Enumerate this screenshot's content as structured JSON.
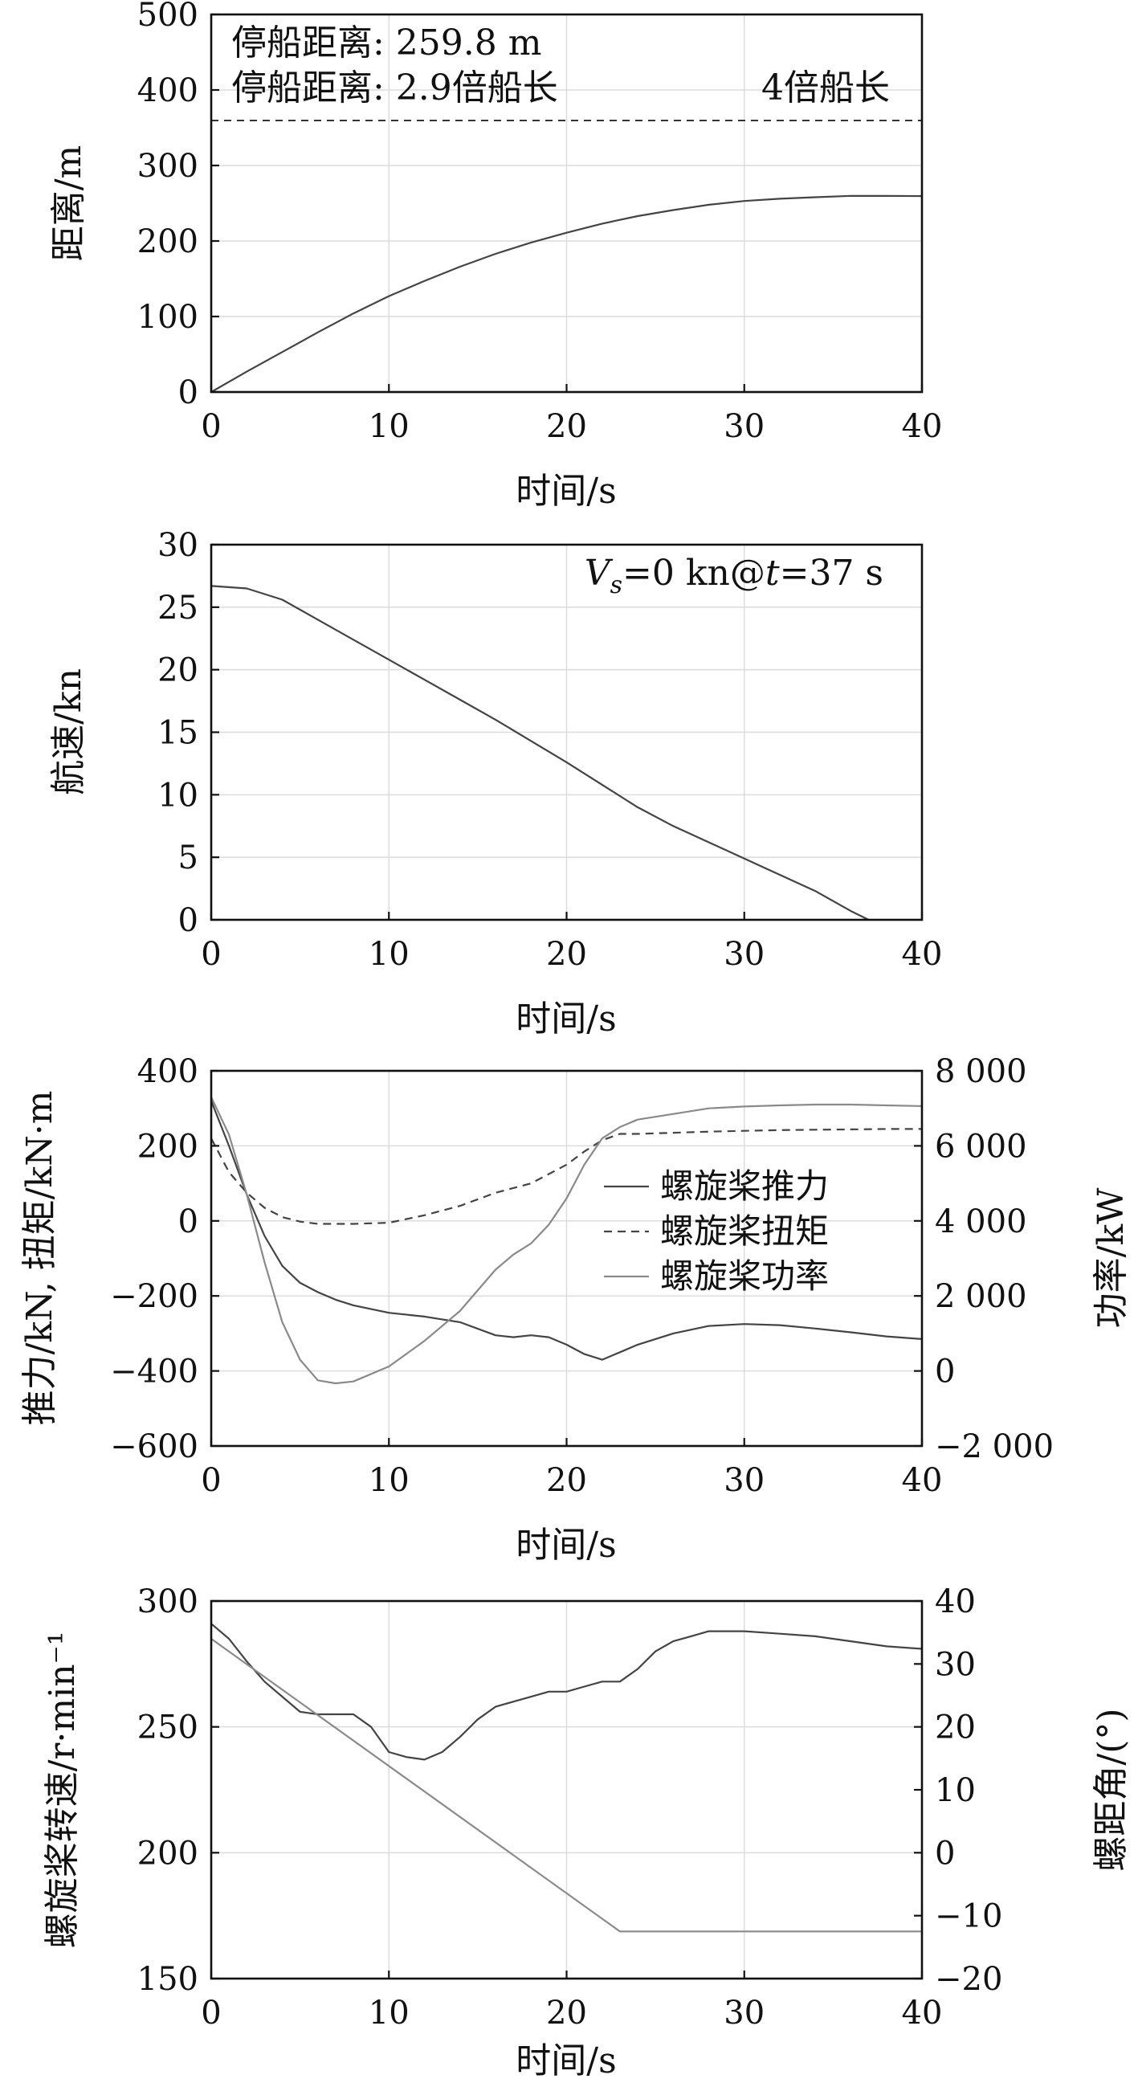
{
  "chart_data": [
    {
      "type": "line",
      "xlabel": "时间/s",
      "ylabel": "距离/m",
      "xlim": [
        0,
        40
      ],
      "ylim": [
        0,
        500
      ],
      "xticks": [
        "0",
        "10",
        "20",
        "30",
        "40"
      ],
      "yticks": [
        "0",
        "100",
        "200",
        "300",
        "400",
        "500"
      ],
      "grid": true,
      "annotations": [
        "停船距离: 259.8 m",
        "停船距离: 2.9倍船长",
        "4倍船长"
      ],
      "reference_line": {
        "y": 360,
        "label": "4倍船长"
      },
      "series": [
        {
          "x": [
            0,
            2,
            4,
            6,
            8,
            10,
            12,
            14,
            16,
            18,
            20,
            22,
            24,
            26,
            28,
            30,
            32,
            34,
            36,
            38,
            40
          ],
          "values": [
            0,
            27,
            53,
            79,
            104,
            127,
            147,
            166,
            183,
            198,
            211,
            223,
            233,
            241,
            248,
            253,
            256,
            258,
            259.8,
            259.7,
            259.5
          ]
        }
      ]
    },
    {
      "type": "line",
      "xlabel": "时间/s",
      "ylabel": "航速/kn",
      "xlim": [
        0,
        40
      ],
      "ylim": [
        0,
        30
      ],
      "xticks": [
        "0",
        "10",
        "20",
        "30",
        "40"
      ],
      "yticks": [
        "0",
        "5",
        "10",
        "15",
        "20",
        "25",
        "30"
      ],
      "grid": true,
      "annotation_parts": [
        "V",
        "s",
        "=0 kn@",
        "t",
        "=37 s"
      ],
      "series": [
        {
          "x": [
            0,
            2,
            4,
            6,
            8,
            10,
            12,
            14,
            16,
            18,
            20,
            22,
            24,
            26,
            28,
            30,
            32,
            34,
            36,
            37
          ],
          "values": [
            26.7,
            26.5,
            25.6,
            24.0,
            22.4,
            20.8,
            19.2,
            17.6,
            16.0,
            14.3,
            12.6,
            10.8,
            9.0,
            7.5,
            6.2,
            4.9,
            3.6,
            2.3,
            0.7,
            0
          ]
        }
      ]
    },
    {
      "type": "line",
      "xlabel": "时间/s",
      "ylabel": "推力/kN, 扭矩/kN·m",
      "ylabel_right": "功率/kW",
      "xlim": [
        0,
        40
      ],
      "ylim": [
        -600,
        400
      ],
      "ylim_right": [
        -2000,
        8000
      ],
      "xticks": [
        "0",
        "10",
        "20",
        "30",
        "40"
      ],
      "yticks": [
        "−600",
        "−400",
        "−200",
        "0",
        "200",
        "400"
      ],
      "yticks_right": [
        "−2 000",
        "0",
        "2 000",
        "4 000",
        "6 000",
        "8 000"
      ],
      "grid": true,
      "legend_position": "center-right",
      "series": [
        {
          "name": "螺旋桨推力",
          "axis": "left",
          "style": "solid",
          "x": [
            0,
            1,
            2,
            3,
            4,
            5,
            6,
            7,
            8,
            10,
            12,
            14,
            16,
            17,
            18,
            19,
            20,
            21,
            22,
            23,
            24,
            26,
            28,
            30,
            32,
            34,
            36,
            38,
            40
          ],
          "values": [
            320,
            200,
            70,
            -40,
            -120,
            -165,
            -190,
            -210,
            -225,
            -245,
            -255,
            -270,
            -305,
            -310,
            -305,
            -310,
            -330,
            -355,
            -370,
            -350,
            -330,
            -300,
            -280,
            -275,
            -278,
            -287,
            -297,
            -308,
            -315
          ]
        },
        {
          "name": "螺旋桨扭矩",
          "axis": "left",
          "style": "dashed",
          "x": [
            0,
            1,
            2,
            3,
            4,
            5,
            6,
            7,
            8,
            10,
            12,
            14,
            16,
            18,
            20,
            21,
            22,
            23,
            24,
            26,
            28,
            30,
            32,
            34,
            36,
            38,
            40
          ],
          "values": [
            220,
            130,
            75,
            35,
            10,
            -2,
            -8,
            -8,
            -8,
            -5,
            15,
            40,
            75,
            100,
            150,
            185,
            215,
            232,
            232,
            235,
            238,
            240,
            242,
            243,
            244,
            245,
            245
          ]
        },
        {
          "name": "螺旋桨功率",
          "axis": "right",
          "style": "solid",
          "x": [
            0,
            1,
            2,
            3,
            4,
            5,
            6,
            7,
            8,
            10,
            12,
            14,
            16,
            17,
            18,
            19,
            20,
            21,
            22,
            23,
            24,
            26,
            28,
            30,
            32,
            34,
            36,
            38,
            40
          ],
          "values": [
            7300,
            6300,
            4700,
            2900,
            1300,
            300,
            -250,
            -330,
            -280,
            120,
            800,
            1600,
            2700,
            3100,
            3400,
            3900,
            4600,
            5500,
            6200,
            6500,
            6700,
            6850,
            7000,
            7050,
            7080,
            7100,
            7100,
            7080,
            7060
          ]
        }
      ]
    },
    {
      "type": "line",
      "xlabel": "时间/s",
      "ylabel": "螺旋桨转速/r·min⁻¹",
      "ylabel_right": "螺距角/(°)",
      "xlim": [
        0,
        40
      ],
      "ylim": [
        150,
        300
      ],
      "ylim_right": [
        -20,
        40
      ],
      "xticks": [
        "0",
        "10",
        "20",
        "30",
        "40"
      ],
      "yticks": [
        "150",
        "200",
        "250",
        "300"
      ],
      "yticks_right": [
        "−20",
        "−10",
        "0",
        "10",
        "20",
        "30",
        "40"
      ],
      "grid": true,
      "series": [
        {
          "axis": "left",
          "style": "solid",
          "x": [
            0,
            1,
            2,
            3,
            4,
            5,
            6,
            7,
            8,
            9,
            10,
            11,
            12,
            13,
            14,
            15,
            16,
            17,
            18,
            19,
            20,
            21,
            22,
            23,
            24,
            25,
            26,
            27,
            28,
            29,
            30,
            32,
            34,
            36,
            38,
            40
          ],
          "values": [
            291,
            285,
            276,
            268,
            262,
            256,
            255,
            255,
            255,
            250,
            240,
            238,
            237,
            240,
            246,
            253,
            258,
            260,
            262,
            264,
            264,
            266,
            268,
            268,
            273,
            280,
            284,
            286,
            288,
            288,
            288,
            287,
            286,
            284,
            282,
            281
          ]
        },
        {
          "axis": "right",
          "style": "solid",
          "x": [
            0,
            23,
            40
          ],
          "values": [
            34,
            -12.5,
            -12.5
          ]
        }
      ]
    }
  ]
}
